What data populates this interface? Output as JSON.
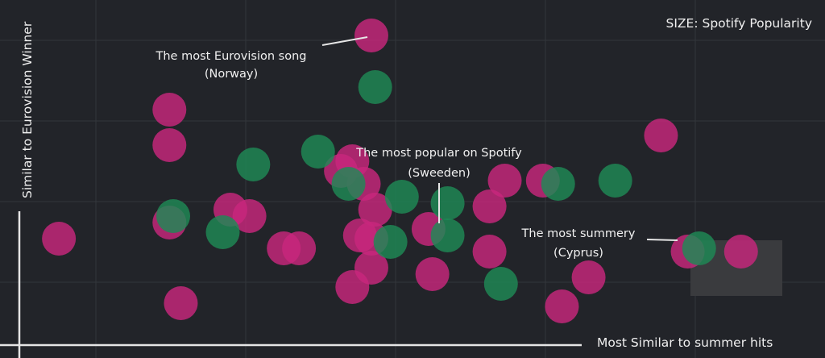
{
  "chart_data": {
    "type": "scatter",
    "title": "",
    "xlabel": "Most Similar to summer hits",
    "ylabel": "Similar to Eurovision Winner",
    "size_legend": "SIZE: Spotify Popularity",
    "xlim": [
      0,
      100
    ],
    "ylim": [
      0,
      100
    ],
    "grid": true,
    "colors": {
      "background": "#222429",
      "grid": "#33363c",
      "axis": "#e6e6e6",
      "pink": "#c8277c",
      "green": "#1f8a55",
      "highlight": "#3a3b3e"
    },
    "series": [
      {
        "name": "pink",
        "color": "#c8277c",
        "points": [
          {
            "x": 3.5,
            "y": 31
          },
          {
            "x": 18,
            "y": 71
          },
          {
            "x": 18,
            "y": 60
          },
          {
            "x": 18,
            "y": 36
          },
          {
            "x": 19.5,
            "y": 11
          },
          {
            "x": 26,
            "y": 40
          },
          {
            "x": 28.5,
            "y": 38
          },
          {
            "x": 33,
            "y": 28
          },
          {
            "x": 35,
            "y": 28
          },
          {
            "x": 40.5,
            "y": 52
          },
          {
            "x": 42,
            "y": 55
          },
          {
            "x": 43.5,
            "y": 48
          },
          {
            "x": 42,
            "y": 16
          },
          {
            "x": 43,
            "y": 32
          },
          {
            "x": 45,
            "y": 40
          },
          {
            "x": 44.5,
            "y": 31
          },
          {
            "x": 44.5,
            "y": 22
          },
          {
            "x": 44.5,
            "y": 94
          },
          {
            "x": 52,
            "y": 34
          },
          {
            "x": 52.5,
            "y": 20
          },
          {
            "x": 60,
            "y": 41
          },
          {
            "x": 60,
            "y": 27
          },
          {
            "x": 62,
            "y": 49
          },
          {
            "x": 67,
            "y": 49
          },
          {
            "x": 69.5,
            "y": 10
          },
          {
            "x": 73,
            "y": 19
          },
          {
            "x": 82.5,
            "y": 63
          },
          {
            "x": 86,
            "y": 27
          },
          {
            "x": 93,
            "y": 27
          }
        ]
      },
      {
        "name": "green",
        "color": "#1f8a55",
        "points": [
          {
            "x": 45,
            "y": 78
          },
          {
            "x": 37.5,
            "y": 58
          },
          {
            "x": 29,
            "y": 54
          },
          {
            "x": 18.5,
            "y": 38
          },
          {
            "x": 25,
            "y": 33
          },
          {
            "x": 41.5,
            "y": 48
          },
          {
            "x": 48.5,
            "y": 44
          },
          {
            "x": 54.5,
            "y": 42
          },
          {
            "x": 47,
            "y": 30
          },
          {
            "x": 54.5,
            "y": 32
          },
          {
            "x": 61.5,
            "y": 17
          },
          {
            "x": 69,
            "y": 48
          },
          {
            "x": 76.5,
            "y": 49
          },
          {
            "x": 87.5,
            "y": 28
          }
        ]
      }
    ],
    "annotations": [
      {
        "line1": "The most Eurovision song",
        "line2": "(Norway)"
      },
      {
        "line1": "The most popular on Spotify",
        "line2": "(Sweeden)"
      },
      {
        "line1": "The most summery",
        "line2": "(Cyprus)"
      }
    ]
  }
}
